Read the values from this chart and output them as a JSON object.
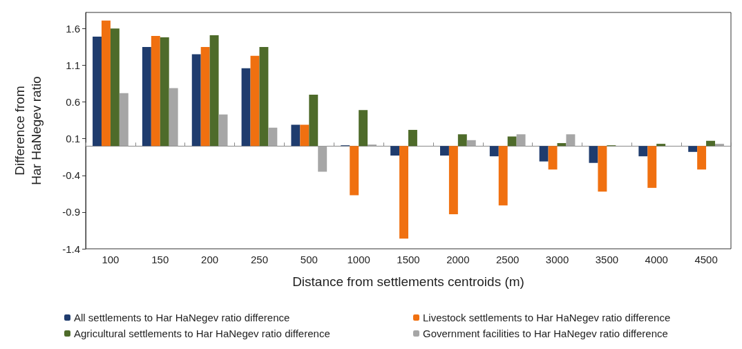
{
  "chart_data": {
    "type": "bar",
    "categories": [
      "100",
      "150",
      "200",
      "250",
      "500",
      "1000",
      "1500",
      "2000",
      "2500",
      "3000",
      "3500",
      "4000",
      "4500"
    ],
    "series": [
      {
        "name": "All settlements to Har HaNegev ratio difference",
        "color": "#1f3c6e",
        "values": [
          1.49,
          1.35,
          1.25,
          1.06,
          0.29,
          0.01,
          -0.13,
          -0.13,
          -0.14,
          -0.21,
          -0.23,
          -0.14,
          -0.08
        ]
      },
      {
        "name": "Livestock settlements to Har HaNegev ratio difference",
        "color": "#f07010",
        "values": [
          1.71,
          1.5,
          1.35,
          1.23,
          0.29,
          -0.67,
          -1.26,
          -0.93,
          -0.81,
          -0.32,
          -0.62,
          -0.57,
          -0.32
        ]
      },
      {
        "name": "Agricultural settlements to Har HaNegev ratio difference",
        "color": "#4e6b2a",
        "values": [
          1.6,
          1.48,
          1.51,
          1.35,
          0.7,
          0.49,
          0.22,
          0.16,
          0.13,
          0.04,
          0.01,
          0.03,
          0.07
        ]
      },
      {
        "name": "Government facilities to Har HaNegev ratio difference",
        "color": "#a6a6a6",
        "values": [
          0.72,
          0.79,
          0.43,
          0.25,
          -0.35,
          0.02,
          null,
          0.08,
          0.16,
          0.16,
          0.0,
          0.0,
          0.03
        ]
      }
    ],
    "xlabel": "Distance from settlements centroids (m)",
    "ylabel": "Difference from\nHar HaNegev ratio",
    "ylim": [
      -1.4,
      1.82
    ],
    "yticks": [
      -1.4,
      -0.9,
      -0.4,
      0.1,
      0.6,
      1.1,
      1.6
    ],
    "grid": false,
    "legend": "bottom"
  }
}
